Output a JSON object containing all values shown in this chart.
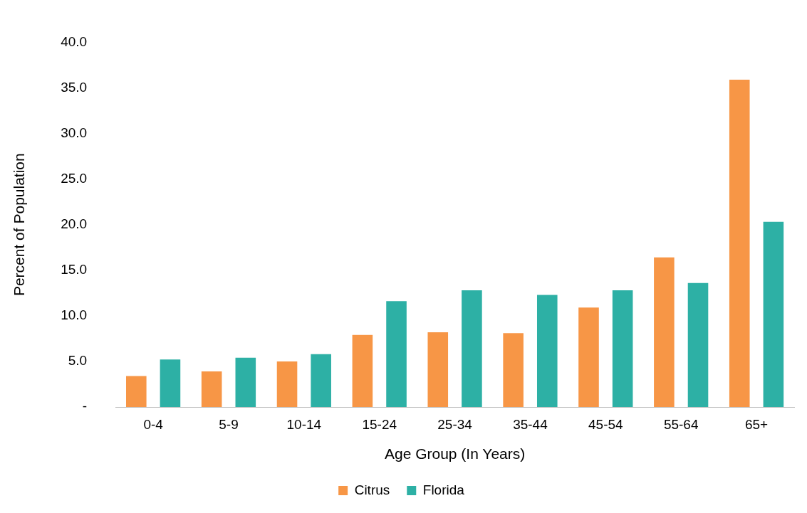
{
  "chart_data": {
    "type": "bar",
    "xlabel": "Age Group (In Years)",
    "ylabel": "Percent of Population",
    "categories": [
      "0-4",
      "5-9",
      "10-14",
      "15-24",
      "25-34",
      "35-44",
      "45-54",
      "55-64",
      "65+"
    ],
    "series": [
      {
        "name": "Citrus",
        "color": "#f79646",
        "values": [
          3.4,
          3.9,
          5.0,
          7.9,
          8.2,
          8.1,
          10.9,
          16.4,
          35.9
        ]
      },
      {
        "name": "Florida",
        "color": "#2db0a5",
        "values": [
          5.2,
          5.4,
          5.8,
          11.6,
          12.8,
          12.3,
          12.8,
          13.6,
          20.3
        ]
      }
    ],
    "ylim": [
      0,
      40
    ],
    "yticks": [
      {
        "value": 0,
        "label": "-"
      },
      {
        "value": 5,
        "label": "5.0"
      },
      {
        "value": 10,
        "label": "10.0"
      },
      {
        "value": 15,
        "label": "15.0"
      },
      {
        "value": 20,
        "label": "20.0"
      },
      {
        "value": 25,
        "label": "25.0"
      },
      {
        "value": 30,
        "label": "30.0"
      },
      {
        "value": 35,
        "label": "35.0"
      },
      {
        "value": 40,
        "label": "40.0"
      }
    ],
    "grid": false,
    "legend": "bottom"
  }
}
